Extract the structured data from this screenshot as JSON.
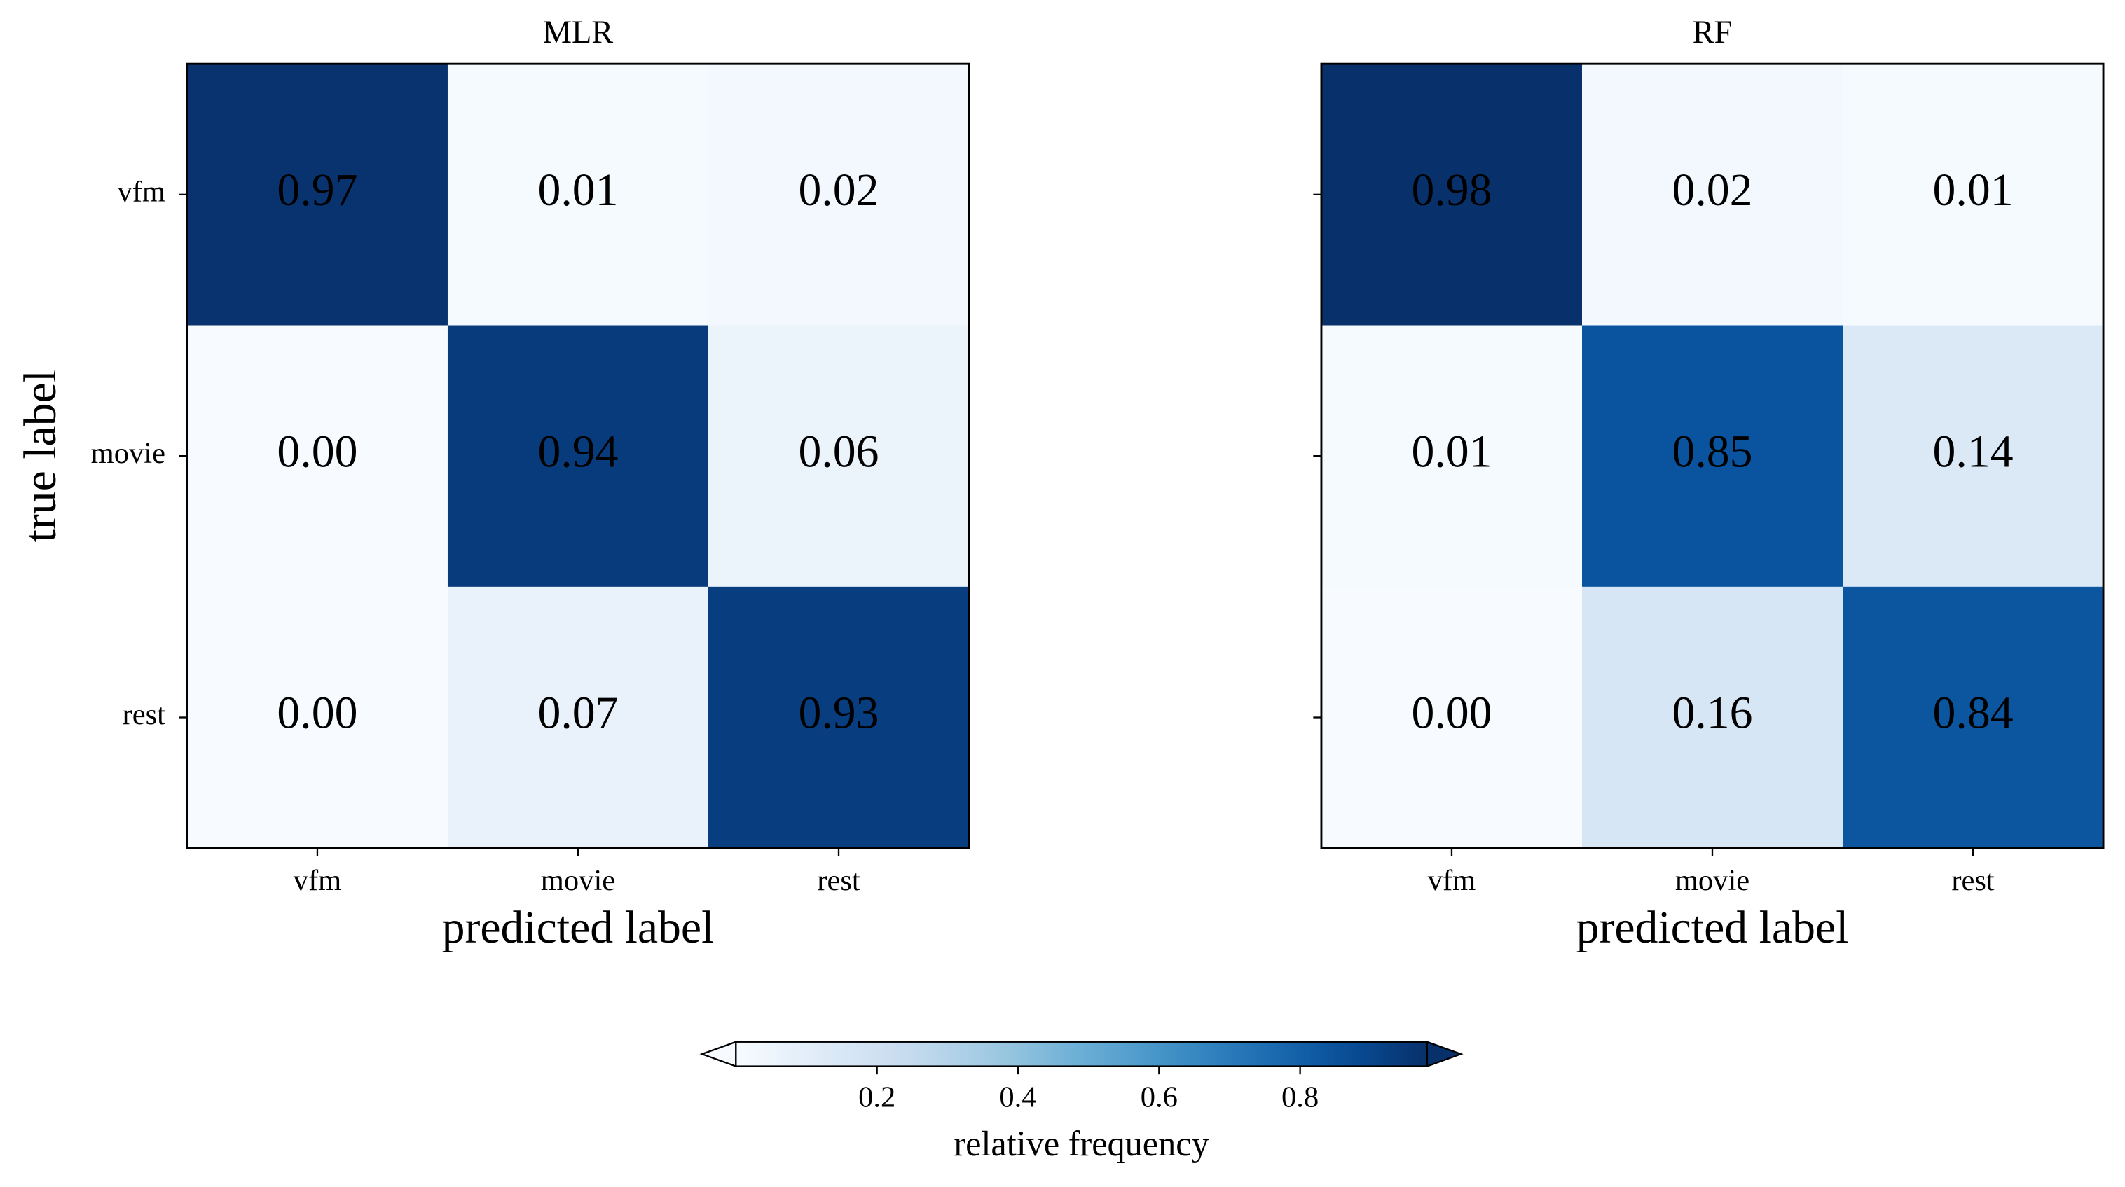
{
  "chart_data": [
    {
      "type": "heatmap",
      "title": "MLR",
      "categories": [
        "vfm",
        "movie",
        "rest"
      ],
      "y_categories": [
        "vfm",
        "movie",
        "rest"
      ],
      "values": [
        [
          0.97,
          0.01,
          0.02
        ],
        [
          0.0,
          0.94,
          0.06
        ],
        [
          0.0,
          0.07,
          0.93
        ]
      ],
      "value_labels": [
        [
          "0.97",
          "0.01",
          "0.02"
        ],
        [
          "0.00",
          "0.94",
          "0.06"
        ],
        [
          "0.00",
          "0.07",
          "0.93"
        ]
      ],
      "xlabel": "predicted label",
      "ylabel": "true label"
    },
    {
      "type": "heatmap",
      "title": "RF",
      "categories": [
        "vfm",
        "movie",
        "rest"
      ],
      "y_categories": [
        null,
        null,
        null
      ],
      "values": [
        [
          0.98,
          0.02,
          0.01
        ],
        [
          0.01,
          0.85,
          0.14
        ],
        [
          0.0,
          0.16,
          0.84
        ]
      ],
      "value_labels": [
        [
          "0.98",
          "0.02",
          "0.01"
        ],
        [
          "0.01",
          "0.85",
          "0.14"
        ],
        [
          "0.00",
          "0.16",
          "0.84"
        ]
      ],
      "xlabel": "predicted label"
    },
    {
      "type": "colorbar",
      "label": "relative frequency",
      "colormap": "Blues",
      "lim": [
        0,
        0.98
      ],
      "ticks": [
        0.2,
        0.4,
        0.6,
        0.8
      ],
      "extend": "both"
    }
  ]
}
